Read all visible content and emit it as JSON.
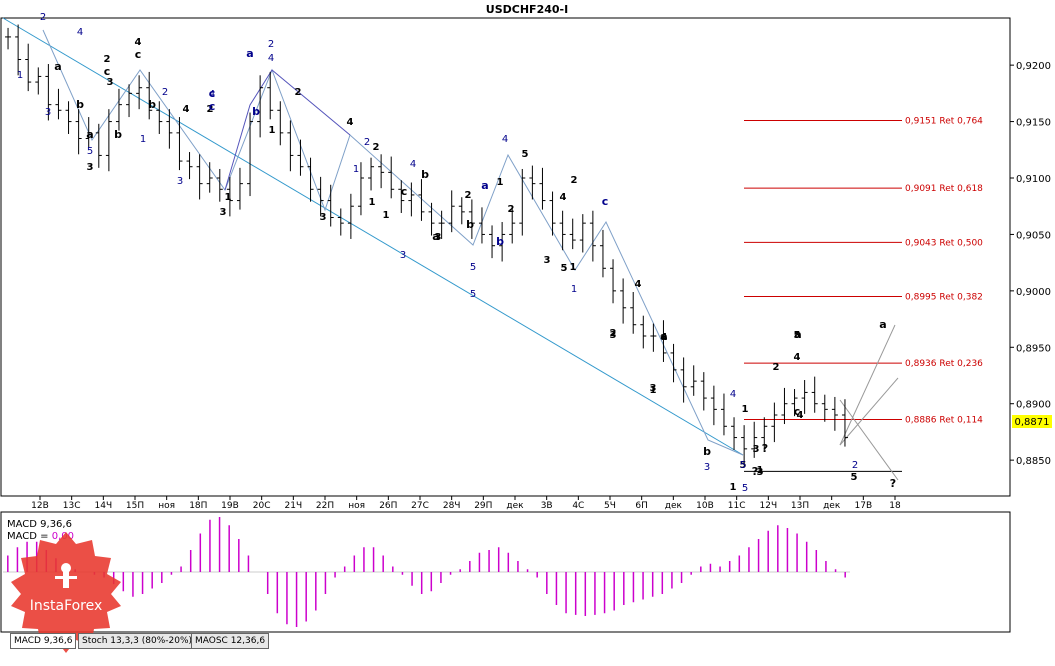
{
  "title": "USDCHF240-I",
  "current_price": "0,8871",
  "price_axis_labels": [
    "0,9200",
    "0,9150",
    "0,9100",
    "0,9050",
    "0,9000",
    "0,8950",
    "0,8900",
    "0,8850"
  ],
  "time_axis_labels": [
    "12В",
    "13С",
    "14Ч",
    "15П",
    "ноя",
    "18П",
    "19В",
    "20С",
    "21Ч",
    "22П",
    "ноя",
    "26П",
    "27С",
    "28Ч",
    "29П",
    "дек",
    "3В",
    "4С",
    "5Ч",
    "6П",
    "дек",
    "10В",
    "11С",
    "12Ч",
    "13П",
    "дек",
    "17В",
    "18"
  ],
  "fib_levels": [
    {
      "label": "0,9151 Ret 0,764"
    },
    {
      "label": "0,9091 Ret 0,618"
    },
    {
      "label": "0,9043 Ret 0,500"
    },
    {
      "label": "0,8995 Ret 0,382"
    },
    {
      "label": "0,8936 Ret 0,236"
    },
    {
      "label": "0,8886 Ret 0,114"
    }
  ],
  "macd_label": "MACD 9,36,6",
  "macd_value_label": "MACD = ",
  "macd_value": "0,00",
  "tabs": [
    "MACD 9,36,6",
    "Stoch 13,3,3 (80%-20%)",
    "MAOSC 12,36,6"
  ],
  "wave_labels_black": [
    "4",
    "c",
    "b",
    "3",
    "a",
    "a",
    "b",
    "2",
    "c",
    "b",
    "3",
    "4",
    "2",
    "1",
    "3",
    "2",
    "1",
    "3",
    "4",
    "2",
    "1",
    "a",
    "c",
    "b",
    "1",
    "2",
    "1",
    "2",
    "5",
    "3",
    "4",
    "1",
    "2",
    "3",
    "4",
    "1",
    "a",
    "b",
    "5",
    "3",
    "1",
    "4",
    "5",
    "3",
    "2",
    "5",
    "1",
    "?",
    "4",
    "c",
    "a",
    "?",
    "?",
    "5",
    "3",
    "b",
    "1",
    "2",
    "3",
    "4",
    "a"
  ],
  "wave_labels_blue": [
    "1",
    "2",
    "4",
    "c",
    "3",
    "5",
    "1",
    "2",
    "4",
    "c",
    "a",
    "b",
    "2",
    "4",
    "1",
    "3",
    "2",
    "c",
    "b",
    "4",
    "3",
    "5",
    "a",
    "5",
    "4",
    "1",
    "3",
    "5",
    "5",
    "4",
    "2"
  ],
  "watermark_text": "InstaForex",
  "colors": {
    "fib": "#cc0000",
    "macd": "#cc00cc",
    "wave_blue": "#00008b",
    "trend_line": "#3399cc",
    "price_marker": "#ffff00"
  },
  "chart_data": {
    "type": "ohlc",
    "title": "USDCHF240-I",
    "ylim": [
      0.882,
      0.924
    ],
    "y_ticks": [
      0.92,
      0.915,
      0.91,
      0.905,
      0.9,
      0.895,
      0.89,
      0.885
    ],
    "series": [
      {
        "values": [
          0.9225,
          0.9205,
          0.9185,
          0.919,
          0.9165,
          0.916,
          0.915,
          0.9135,
          0.914,
          0.912,
          0.915,
          0.9165,
          0.9175,
          0.918,
          0.916,
          0.915,
          0.914,
          0.9115,
          0.911,
          0.9095,
          0.91,
          0.909,
          0.908,
          0.9095,
          0.915,
          0.918,
          0.916,
          0.914,
          0.912,
          0.911,
          0.909,
          0.908,
          0.9065,
          0.906,
          0.9075,
          0.91,
          0.911,
          0.9105,
          0.909,
          0.908,
          0.9085,
          0.907,
          0.906,
          0.906,
          0.9075,
          0.907,
          0.906,
          0.905,
          0.904,
          0.905,
          0.906,
          0.91,
          0.9095,
          0.908,
          0.906,
          0.905,
          0.9045,
          0.906,
          0.904,
          0.902,
          0.9,
          0.8985,
          0.897,
          0.896,
          0.896,
          0.8945,
          0.893,
          0.8915,
          0.892,
          0.8905,
          0.8895,
          0.888,
          0.887,
          0.886,
          0.887,
          0.888,
          0.889,
          0.89,
          0.8905,
          0.891,
          0.89,
          0.8895,
          0.889,
          0.887
        ]
      },
      {
        "name": "MACD 9,36,6",
        "values": [
          0.3,
          0.45,
          0.55,
          0.55,
          0.4,
          0.25,
          0.12,
          0.05,
          0.0,
          -0.05,
          -0.1,
          -0.22,
          -0.35,
          -0.45,
          -0.4,
          -0.3,
          -0.2,
          -0.05,
          0.1,
          0.4,
          0.7,
          0.95,
          1.0,
          0.85,
          0.6,
          0.3,
          0.0,
          -0.4,
          -0.75,
          -0.95,
          -1.0,
          -0.9,
          -0.7,
          -0.4,
          -0.1,
          0.1,
          0.3,
          0.45,
          0.45,
          0.3,
          0.1,
          -0.05,
          -0.25,
          -0.4,
          -0.35,
          -0.2,
          -0.05,
          0.05,
          0.2,
          0.35,
          0.4,
          0.45,
          0.35,
          0.2,
          0.05,
          -0.1,
          -0.4,
          -0.6,
          -0.75,
          -0.78,
          -0.8,
          -0.78,
          -0.75,
          -0.7,
          -0.6,
          -0.55,
          -0.5,
          -0.45,
          -0.4,
          -0.3,
          -0.2,
          -0.05,
          0.1,
          0.15,
          0.1,
          0.2,
          0.3,
          0.45,
          0.6,
          0.75,
          0.85,
          0.8,
          0.7,
          0.55,
          0.4,
          0.2,
          0.05,
          -0.1
        ]
      }
    ],
    "fib_retracements": [
      {
        "price": 0.9151,
        "ratio": 0.764
      },
      {
        "price": 0.9091,
        "ratio": 0.618
      },
      {
        "price": 0.9043,
        "ratio": 0.5
      },
      {
        "price": 0.8995,
        "ratio": 0.382
      },
      {
        "price": 0.8936,
        "ratio": 0.236
      },
      {
        "price": 0.8886,
        "ratio": 0.114
      }
    ],
    "x_tick_labels": [
      "12В",
      "13С",
      "14Ч",
      "15П",
      "ноя",
      "18П",
      "19В",
      "20С",
      "21Ч",
      "22П",
      "ноя",
      "26П",
      "27С",
      "28Ч",
      "29П",
      "дек",
      "3В",
      "4С",
      "5Ч",
      "6П",
      "дек",
      "10В",
      "11С",
      "12Ч",
      "13П",
      "дек",
      "17В",
      "18"
    ]
  }
}
